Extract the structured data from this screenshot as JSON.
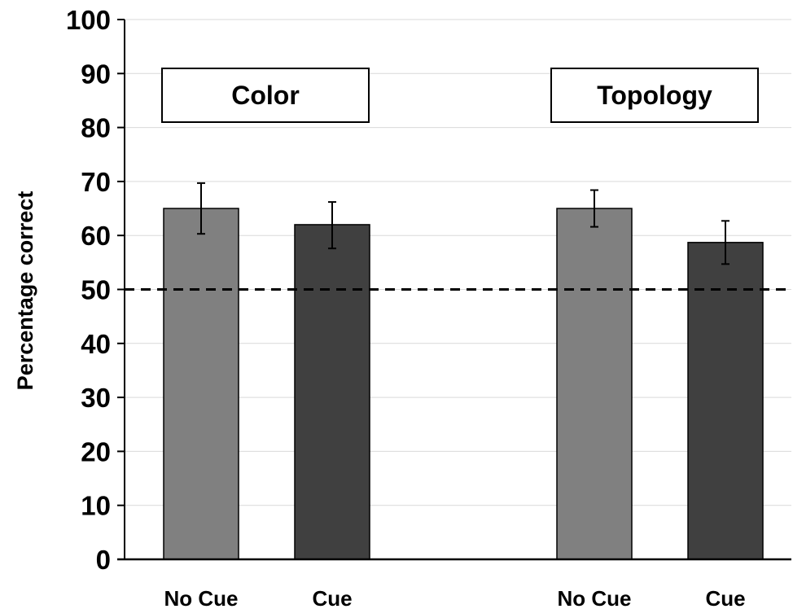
{
  "chart_data": {
    "type": "bar",
    "ylabel": "Percentage correct",
    "ylim": [
      0,
      100
    ],
    "yticks": [
      0,
      10,
      20,
      30,
      40,
      50,
      60,
      70,
      80,
      90,
      100
    ],
    "grid": true,
    "reference_line": {
      "y": 50,
      "style": "dashed"
    },
    "groups": [
      {
        "label": "Color",
        "bars": [
          {
            "category": "No Cue",
            "value": 65,
            "error_low": 60.3,
            "error_high": 69.7,
            "color": "#808080"
          },
          {
            "category": "Cue",
            "value": 62,
            "error_low": 57.6,
            "error_high": 66.2,
            "color": "#404040"
          }
        ]
      },
      {
        "label": "Topology",
        "bars": [
          {
            "category": "No Cue",
            "value": 65,
            "error_low": 61.6,
            "error_high": 68.4,
            "color": "#808080"
          },
          {
            "category": "Cue",
            "value": 58.7,
            "error_low": 54.7,
            "error_high": 62.7,
            "color": "#404040"
          }
        ]
      }
    ]
  }
}
